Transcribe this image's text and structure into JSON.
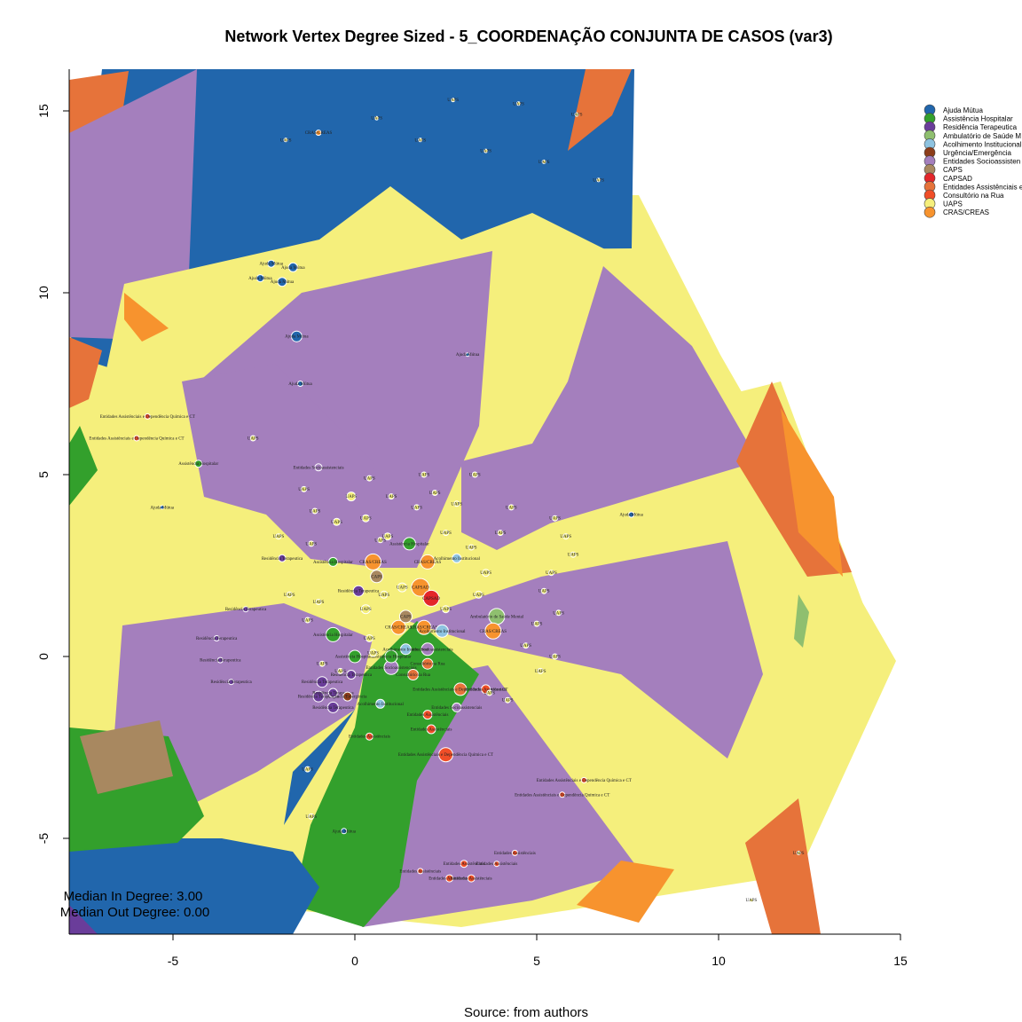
{
  "chart_data": {
    "type": "scatter",
    "title": "Network Vertex Degree Sized - 5_COORDENAÇÃO CONJUNTA DE CASOS (var3)",
    "caption": "Source: from authors",
    "stats": [
      "Median In Degree: 3.00",
      "Median Out Degree: 0.00"
    ],
    "xlim": [
      -8,
      15
    ],
    "ylim": [
      -7.5,
      16
    ],
    "x_ticks": [
      -5,
      0,
      5,
      10,
      15
    ],
    "y_ticks": [
      -5,
      0,
      5,
      10,
      15
    ],
    "legend_position": "top-right",
    "legend": [
      {
        "label": "Ajuda Mútua",
        "color": "#2166ac"
      },
      {
        "label": "Assistência Hospitalar",
        "color": "#33a02c"
      },
      {
        "label": "Residência Terapeutica",
        "color": "#6a3d9a"
      },
      {
        "label": "Ambulatório de Saúde M",
        "color": "#8fbf6f"
      },
      {
        "label": "Acolhimento Institucional",
        "color": "#8ec3e0"
      },
      {
        "label": "Urgência/Emergência",
        "color": "#8c3d1a"
      },
      {
        "label": "Entidades Socioassisten",
        "color": "#a47fbd"
      },
      {
        "label": "CAPS",
        "color": "#a88860"
      },
      {
        "label": "CAPSAD",
        "color": "#e3262a"
      },
      {
        "label": "Entidades Assistênciais e",
        "color": "#e6733a"
      },
      {
        "label": "Consultório na Rua",
        "color": "#f04e28"
      },
      {
        "label": "UAPS",
        "color": "#f5ef7c"
      },
      {
        "label": "CRAS/CREAS",
        "color": "#f7932e"
      }
    ],
    "nodes": [
      {
        "x": 1.8,
        "y": 1.9,
        "c": 12,
        "r": 10,
        "label": "CAPSAD"
      },
      {
        "x": 2.1,
        "y": 1.6,
        "c": 8,
        "r": 9,
        "label": "CAPSAD"
      },
      {
        "x": 0.5,
        "y": 2.6,
        "c": 12,
        "r": 9,
        "label": "CRAS/CREAS"
      },
      {
        "x": 2.0,
        "y": 2.6,
        "c": 12,
        "r": 8,
        "label": "CRAS/CREAS"
      },
      {
        "x": 3.9,
        "y": 1.1,
        "c": 3,
        "r": 9,
        "label": "Ambulatório de Saúde Mental"
      },
      {
        "x": 3.8,
        "y": 0.7,
        "c": 12,
        "r": 9,
        "label": "CRAS/CREAS"
      },
      {
        "x": 1.9,
        "y": 0.8,
        "c": 12,
        "r": 8,
        "label": "CRAS/CREAS"
      },
      {
        "x": 2.4,
        "y": 0.7,
        "c": 4,
        "r": 7,
        "label": "Acolhimento Institucional"
      },
      {
        "x": 1.2,
        "y": 0.8,
        "c": 12,
        "r": 8,
        "label": "CRAS/CREAS"
      },
      {
        "x": 1.5,
        "y": 3.1,
        "c": 1,
        "r": 7,
        "label": "Assistência Hospitalar"
      },
      {
        "x": -0.6,
        "y": 0.6,
        "c": 1,
        "r": 8,
        "label": "Assistência Hospitalar"
      },
      {
        "x": 0.0,
        "y": 0.0,
        "c": 1,
        "r": 7,
        "label": "Assistência Hospitalar"
      },
      {
        "x": 1.0,
        "y": -0.3,
        "c": 6,
        "r": 8,
        "label": "Entidades Socioassistenciais"
      },
      {
        "x": 1.0,
        "y": 0.0,
        "c": 1,
        "r": 7,
        "label": "Assistência Hospitalar"
      },
      {
        "x": 2.0,
        "y": 0.2,
        "c": 6,
        "r": 7,
        "label": "Entidades Socioassistenciais"
      },
      {
        "x": 1.4,
        "y": 0.2,
        "c": 4,
        "r": 6,
        "label": "Acolhimento Institucional"
      },
      {
        "x": 2.0,
        "y": -0.2,
        "c": 9,
        "r": 6,
        "label": "Consultório na Rua"
      },
      {
        "x": 1.6,
        "y": -0.5,
        "c": 9,
        "r": 6,
        "label": "Consultório na Rua"
      },
      {
        "x": 0.6,
        "y": 2.2,
        "c": 7,
        "r": 7,
        "label": "CAPS"
      },
      {
        "x": 1.4,
        "y": 1.1,
        "c": 7,
        "r": 7,
        "label": "CAPS"
      },
      {
        "x": 0.1,
        "y": 1.8,
        "c": 2,
        "r": 6,
        "label": "Residência Terapeutica"
      },
      {
        "x": -1.0,
        "y": -1.1,
        "c": 2,
        "r": 6,
        "label": "Residência Terapeutica"
      },
      {
        "x": -0.6,
        "y": -1.4,
        "c": 2,
        "r": 6,
        "label": "Residência Terapeutica"
      },
      {
        "x": -0.9,
        "y": -0.7,
        "c": 2,
        "r": 6,
        "label": "Residência Terapeutica"
      },
      {
        "x": -0.1,
        "y": -0.5,
        "c": 2,
        "r": 5,
        "label": "Residência Terapeutica"
      },
      {
        "x": -0.6,
        "y": -1.0,
        "c": 2,
        "r": 5,
        "label": "Residência Terapeutica"
      },
      {
        "x": -0.2,
        "y": -1.1,
        "c": 5,
        "r": 5,
        "label": "Urgência/Emergência"
      },
      {
        "x": 0.7,
        "y": -1.3,
        "c": 4,
        "r": 5,
        "label": "Acolhimento Institucional"
      },
      {
        "x": 2.5,
        "y": -2.7,
        "c": 10,
        "r": 8,
        "label": "Entidades Assistênciais e Dependência Química e CT"
      },
      {
        "x": 2.9,
        "y": -0.9,
        "c": 9,
        "r": 7,
        "label": "Entidades Assistênciais e Dependência Química e CT"
      },
      {
        "x": 3.6,
        "y": -0.9,
        "c": 10,
        "r": 5,
        "label": "Entidades Assistênciais"
      },
      {
        "x": 2.1,
        "y": -2.0,
        "c": 10,
        "r": 5,
        "label": "Entidades Assistênciais"
      },
      {
        "x": 2.0,
        "y": -1.6,
        "c": 10,
        "r": 5,
        "label": "Entidades Assistênciais"
      },
      {
        "x": 2.8,
        "y": -1.4,
        "c": 6,
        "r": 5,
        "label": "Entidades Socioassistenciais"
      },
      {
        "x": -0.6,
        "y": 2.6,
        "c": 1,
        "r": 5,
        "label": "Assistência Hospitalar"
      },
      {
        "x": 2.8,
        "y": 2.7,
        "c": 4,
        "r": 5,
        "label": "Acolhimento Institucional"
      },
      {
        "x": 0.4,
        "y": -2.2,
        "c": 10,
        "r": 4,
        "label": "Entidades Assistênciais"
      },
      {
        "x": -2.0,
        "y": 10.3,
        "c": 0,
        "r": 5,
        "label": "Ajuda Mútua"
      },
      {
        "x": -1.7,
        "y": 10.7,
        "c": 0,
        "r": 5,
        "label": "Ajuda Mútua"
      },
      {
        "x": -2.3,
        "y": 10.8,
        "c": 0,
        "r": 4,
        "label": "Ajuda Mútua"
      },
      {
        "x": -2.6,
        "y": 10.4,
        "c": 0,
        "r": 4,
        "label": "Ajuda Mútua"
      },
      {
        "x": -1.6,
        "y": 8.8,
        "c": 0,
        "r": 6,
        "label": "Ajuda Mútua"
      },
      {
        "x": -4.3,
        "y": 5.3,
        "c": 1,
        "r": 4,
        "label": "Assistência Hospitalar"
      },
      {
        "x": -1.0,
        "y": 5.2,
        "c": 6,
        "r": 4,
        "label": "Entidades Socioassistenciais"
      },
      {
        "x": -2.0,
        "y": 2.7,
        "c": 2,
        "r": 4,
        "label": "Residência Terapeutica"
      },
      {
        "x": -3.0,
        "y": 1.3,
        "c": 2,
        "r": 3,
        "label": "Residência Terapeutica"
      },
      {
        "x": -3.8,
        "y": 0.5,
        "c": 2,
        "r": 3,
        "label": "Residência Terapeutica"
      },
      {
        "x": -3.7,
        "y": -0.1,
        "c": 2,
        "r": 3,
        "label": "Residência Terapeutica"
      },
      {
        "x": -3.4,
        "y": -0.7,
        "c": 2,
        "r": 3,
        "label": "Residência Terapeutica"
      },
      {
        "x": -5.7,
        "y": 6.6,
        "c": 10,
        "r": 3,
        "label": "Entidades Assistênciais e Dependência Química e CT"
      },
      {
        "x": -6.0,
        "y": 6.0,
        "c": 10,
        "r": 3,
        "label": "Entidades Assistênciais e Dependência Química e CT"
      },
      {
        "x": 6.3,
        "y": -3.4,
        "c": 10,
        "r": 3,
        "label": "Entidades Assistênciais e Dependência Química e CT"
      },
      {
        "x": 5.7,
        "y": -3.8,
        "c": 10,
        "r": 3,
        "label": "Entidades Assistênciais e Dependência Química e CT"
      },
      {
        "x": 3.0,
        "y": -5.7,
        "c": 10,
        "r": 4,
        "label": "Entidades Assistênciais"
      },
      {
        "x": 2.6,
        "y": -6.1,
        "c": 10,
        "r": 4,
        "label": "Entidades Assistênciais"
      },
      {
        "x": 3.2,
        "y": -6.1,
        "c": 10,
        "r": 4,
        "label": "Entidades Assistênciais"
      },
      {
        "x": 4.4,
        "y": -5.4,
        "c": 10,
        "r": 3,
        "label": "Entidades Assistênciais"
      },
      {
        "x": 3.9,
        "y": -5.7,
        "c": 10,
        "r": 3,
        "label": "Entidades Assistênciais"
      },
      {
        "x": 1.8,
        "y": -5.9,
        "c": 10,
        "r": 3,
        "label": "Entidades Assistênciais"
      },
      {
        "x": -1.0,
        "y": 14.4,
        "c": 12,
        "r": 3,
        "label": "CRAS/CREAS"
      },
      {
        "x": 7.6,
        "y": 3.9,
        "c": 0,
        "r": 3,
        "label": "Ajuda Mútua"
      },
      {
        "x": -5.3,
        "y": 4.1,
        "c": 0,
        "r": 2,
        "label": "Ajuda Mútua"
      },
      {
        "x": -1.5,
        "y": 7.5,
        "c": 0,
        "r": 3,
        "label": "Ajuda Mútua"
      },
      {
        "x": 3.1,
        "y": 8.3,
        "c": 0,
        "r": 2,
        "label": "Ajuda Mútua"
      },
      {
        "x": -0.3,
        "y": -4.8,
        "c": 0,
        "r": 3,
        "label": "Ajuda Mútua"
      },
      {
        "x": -1.3,
        "y": -3.1,
        "c": 11,
        "r": 3,
        "label": "UAPS"
      },
      {
        "x": -1.2,
        "y": -4.4,
        "c": 11,
        "r": 3,
        "label": "UAPS"
      },
      {
        "x": 0.6,
        "y": 14.8,
        "c": 11,
        "r": 2,
        "label": "UAPS"
      },
      {
        "x": 2.7,
        "y": 15.3,
        "c": 11,
        "r": 2,
        "label": "UAPS"
      },
      {
        "x": 4.5,
        "y": 15.2,
        "c": 11,
        "r": 2,
        "label": "UAPS"
      },
      {
        "x": 6.1,
        "y": 14.9,
        "c": 11,
        "r": 2,
        "label": "UAPS"
      },
      {
        "x": 1.8,
        "y": 14.2,
        "c": 11,
        "r": 2,
        "label": "UAPS"
      },
      {
        "x": 3.6,
        "y": 13.9,
        "c": 11,
        "r": 2,
        "label": "UAPS"
      },
      {
        "x": 5.2,
        "y": 13.6,
        "c": 11,
        "r": 2,
        "label": "UAPS"
      },
      {
        "x": 6.7,
        "y": 13.1,
        "c": 11,
        "r": 2,
        "label": "UAPS"
      },
      {
        "x": -1.9,
        "y": 14.2,
        "c": 11,
        "r": 2,
        "label": "UAPS"
      },
      {
        "x": -2.8,
        "y": 6.0,
        "c": 11,
        "r": 3,
        "label": "UAPS"
      },
      {
        "x": 12.2,
        "y": -5.4,
        "c": 11,
        "r": 2,
        "label": "UAPS"
      },
      {
        "x": 10.9,
        "y": -6.7,
        "c": 11,
        "r": 2,
        "label": "UAPS"
      },
      {
        "x": 0.3,
        "y": 1.3,
        "c": 11,
        "r": 5,
        "label": "UAPS"
      },
      {
        "x": 1.3,
        "y": 1.9,
        "c": 11,
        "r": 5,
        "label": "UAPS"
      },
      {
        "x": 0.8,
        "y": 1.7,
        "c": 11,
        "r": 4,
        "label": "UAPS"
      },
      {
        "x": 2.5,
        "y": 1.3,
        "c": 11,
        "r": 4,
        "label": "UAPS"
      },
      {
        "x": 3.4,
        "y": 1.7,
        "c": 11,
        "r": 4,
        "label": "UAPS"
      },
      {
        "x": 3.6,
        "y": 2.3,
        "c": 11,
        "r": 4,
        "label": "UAPS"
      },
      {
        "x": -0.1,
        "y": 4.4,
        "c": 11,
        "r": 5,
        "label": "UAPS"
      },
      {
        "x": 0.9,
        "y": 3.3,
        "c": 11,
        "r": 4,
        "label": "UAPS"
      },
      {
        "x": 0.3,
        "y": 3.8,
        "c": 11,
        "r": 4,
        "label": "UAPS"
      },
      {
        "x": -0.5,
        "y": 3.7,
        "c": 11,
        "r": 4,
        "label": "UAPS"
      },
      {
        "x": -1.1,
        "y": 4.0,
        "c": 11,
        "r": 3,
        "label": "UAPS"
      },
      {
        "x": -1.4,
        "y": 4.6,
        "c": 11,
        "r": 3,
        "label": "UAPS"
      },
      {
        "x": 0.4,
        "y": 4.9,
        "c": 11,
        "r": 3,
        "label": "UAPS"
      },
      {
        "x": 1.0,
        "y": 4.4,
        "c": 11,
        "r": 3,
        "label": "UAPS"
      },
      {
        "x": 1.7,
        "y": 4.1,
        "c": 11,
        "r": 3,
        "label": "UAPS"
      },
      {
        "x": 1.9,
        "y": 5.0,
        "c": 11,
        "r": 3,
        "label": "UAPS"
      },
      {
        "x": 2.2,
        "y": 4.5,
        "c": 11,
        "r": 3,
        "label": "UAPS"
      },
      {
        "x": 2.8,
        "y": 4.2,
        "c": 11,
        "r": 3,
        "label": "UAPS"
      },
      {
        "x": 3.3,
        "y": 5.0,
        "c": 11,
        "r": 3,
        "label": "UAPS"
      },
      {
        "x": 4.3,
        "y": 4.1,
        "c": 11,
        "r": 3,
        "label": "UAPS"
      },
      {
        "x": 5.5,
        "y": 3.8,
        "c": 11,
        "r": 3,
        "label": "UAPS"
      },
      {
        "x": 5.8,
        "y": 3.3,
        "c": 11,
        "r": 3,
        "label": "UAPS"
      },
      {
        "x": 6.0,
        "y": 2.8,
        "c": 11,
        "r": 3,
        "label": "UAPS"
      },
      {
        "x": 5.4,
        "y": 2.3,
        "c": 11,
        "r": 3,
        "label": "UAPS"
      },
      {
        "x": 5.2,
        "y": 1.8,
        "c": 11,
        "r": 3,
        "label": "UAPS"
      },
      {
        "x": 5.6,
        "y": 1.2,
        "c": 11,
        "r": 3,
        "label": "UAPS"
      },
      {
        "x": 5.0,
        "y": 0.9,
        "c": 11,
        "r": 3,
        "label": "UAPS"
      },
      {
        "x": 4.7,
        "y": 0.3,
        "c": 11,
        "r": 3,
        "label": "UAPS"
      },
      {
        "x": 5.1,
        "y": -0.4,
        "c": 11,
        "r": 3,
        "label": "UAPS"
      },
      {
        "x": 5.5,
        "y": 0.0,
        "c": 11,
        "r": 3,
        "label": "UAPS"
      },
      {
        "x": -1.2,
        "y": 3.1,
        "c": 11,
        "r": 3,
        "label": "UAPS"
      },
      {
        "x": -2.1,
        "y": 3.3,
        "c": 11,
        "r": 3,
        "label": "UAPS"
      },
      {
        "x": -1.3,
        "y": 1.0,
        "c": 11,
        "r": 3,
        "label": "UAPS"
      },
      {
        "x": -1.8,
        "y": 1.7,
        "c": 11,
        "r": 3,
        "label": "UAPS"
      },
      {
        "x": -1.0,
        "y": 1.5,
        "c": 11,
        "r": 3,
        "label": "UAPS"
      },
      {
        "x": 3.7,
        "y": -1.0,
        "c": 11,
        "r": 3,
        "label": "UAPS"
      },
      {
        "x": 4.2,
        "y": -1.2,
        "c": 11,
        "r": 3,
        "label": "UAPS"
      },
      {
        "x": 4.0,
        "y": 3.4,
        "c": 11,
        "r": 3,
        "label": "UAPS"
      },
      {
        "x": 3.2,
        "y": 3.0,
        "c": 11,
        "r": 3,
        "label": "UAPS"
      },
      {
        "x": 2.5,
        "y": 3.4,
        "c": 11,
        "r": 3,
        "label": "UAPS"
      },
      {
        "x": 0.4,
        "y": 0.5,
        "c": 11,
        "r": 4,
        "label": "UAPS"
      },
      {
        "x": 0.5,
        "y": 0.1,
        "c": 11,
        "r": 4,
        "label": "UAPS"
      },
      {
        "x": -0.9,
        "y": -0.2,
        "c": 11,
        "r": 3,
        "label": "UAPS"
      },
      {
        "x": -0.4,
        "y": -0.4,
        "c": 11,
        "r": 3,
        "label": "UAPS"
      },
      {
        "x": 0.7,
        "y": 3.2,
        "c": 11,
        "r": 3,
        "label": "UAPS"
      }
    ]
  }
}
